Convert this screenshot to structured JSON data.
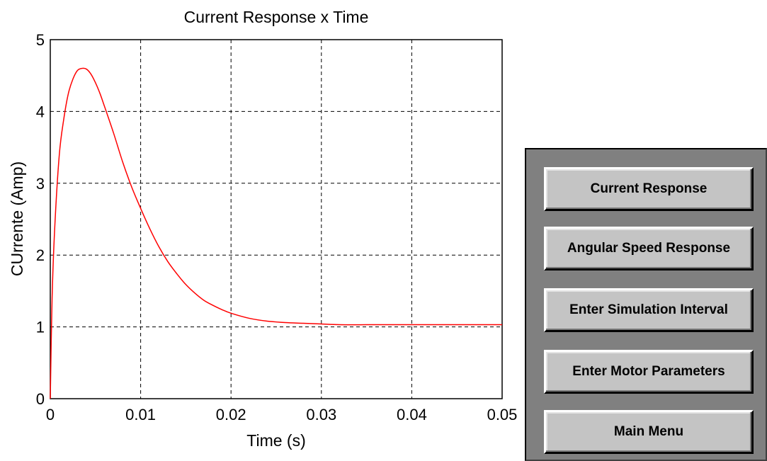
{
  "chart_data": {
    "type": "line",
    "title": "Current Response  x  Time",
    "xlabel": "Time (s)",
    "ylabel": "CUrrente (Amp)",
    "xlim": [
      0,
      0.05
    ],
    "ylim": [
      0,
      5
    ],
    "x_ticks": [
      "0",
      "0.01",
      "0.02",
      "0.03",
      "0.04",
      "0.05"
    ],
    "y_ticks": [
      "0",
      "1",
      "2",
      "3",
      "4",
      "5"
    ],
    "grid": true,
    "series": [
      {
        "color": "#ff0000",
        "x": [
          0,
          0.0002,
          0.0005,
          0.001,
          0.0015,
          0.002,
          0.0025,
          0.003,
          0.0035,
          0.004,
          0.0045,
          0.005,
          0.0055,
          0.006,
          0.007,
          0.008,
          0.009,
          0.01,
          0.011,
          0.012,
          0.013,
          0.014,
          0.015,
          0.016,
          0.017,
          0.018,
          0.019,
          0.02,
          0.022,
          0.024,
          0.026,
          0.028,
          0.03,
          0.032,
          0.035,
          0.04,
          0.045,
          0.05
        ],
        "y": [
          0,
          1.4,
          2.4,
          3.4,
          3.9,
          4.25,
          4.45,
          4.57,
          4.6,
          4.59,
          4.52,
          4.4,
          4.25,
          4.07,
          3.7,
          3.3,
          2.95,
          2.65,
          2.37,
          2.12,
          1.91,
          1.74,
          1.59,
          1.47,
          1.37,
          1.3,
          1.24,
          1.19,
          1.12,
          1.08,
          1.06,
          1.05,
          1.04,
          1.03,
          1.03,
          1.03,
          1.03,
          1.03
        ]
      }
    ]
  },
  "panel": {
    "buttons": [
      {
        "label": "Current Response"
      },
      {
        "label": "Angular Speed Response"
      },
      {
        "label": "Enter Simulation Interval"
      },
      {
        "label": "Enter Motor Parameters"
      },
      {
        "label": "Main Menu"
      }
    ]
  }
}
